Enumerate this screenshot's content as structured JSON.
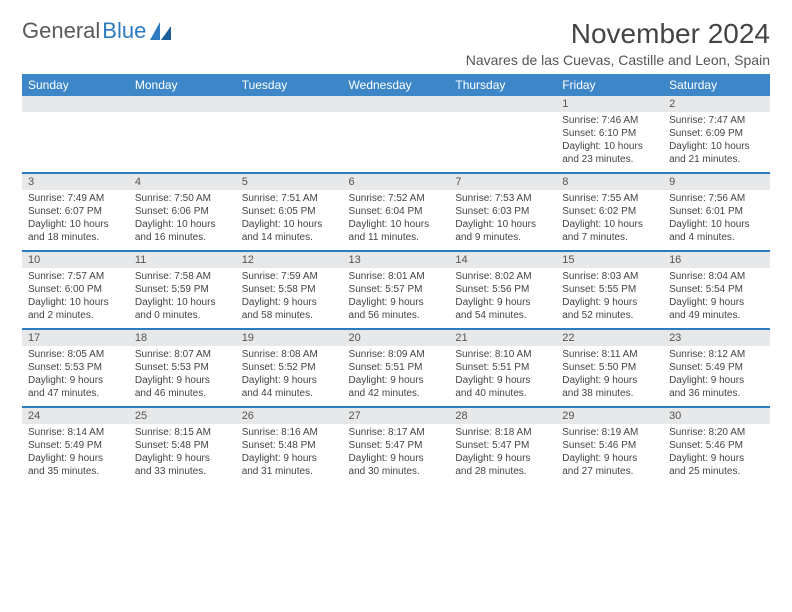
{
  "brand": {
    "word1": "General",
    "word2": "Blue"
  },
  "title": "November 2024",
  "location": "Navares de las Cuevas, Castille and Leon, Spain",
  "colors": {
    "header_bg": "#3d87c9",
    "header_text": "#ffffff",
    "week_rule": "#2f7bbf",
    "daynum_bg": "#e6e8ea",
    "body_text": "#444444",
    "brand_gray": "#5a5a5a",
    "brand_blue": "#2f7bbf"
  },
  "day_headers": [
    "Sunday",
    "Monday",
    "Tuesday",
    "Wednesday",
    "Thursday",
    "Friday",
    "Saturday"
  ],
  "weeks": [
    [
      null,
      null,
      null,
      null,
      null,
      {
        "n": "1",
        "sunrise": "Sunrise: 7:46 AM",
        "sunset": "Sunset: 6:10 PM",
        "day1": "Daylight: 10 hours",
        "day2": "and 23 minutes."
      },
      {
        "n": "2",
        "sunrise": "Sunrise: 7:47 AM",
        "sunset": "Sunset: 6:09 PM",
        "day1": "Daylight: 10 hours",
        "day2": "and 21 minutes."
      }
    ],
    [
      {
        "n": "3",
        "sunrise": "Sunrise: 7:49 AM",
        "sunset": "Sunset: 6:07 PM",
        "day1": "Daylight: 10 hours",
        "day2": "and 18 minutes."
      },
      {
        "n": "4",
        "sunrise": "Sunrise: 7:50 AM",
        "sunset": "Sunset: 6:06 PM",
        "day1": "Daylight: 10 hours",
        "day2": "and 16 minutes."
      },
      {
        "n": "5",
        "sunrise": "Sunrise: 7:51 AM",
        "sunset": "Sunset: 6:05 PM",
        "day1": "Daylight: 10 hours",
        "day2": "and 14 minutes."
      },
      {
        "n": "6",
        "sunrise": "Sunrise: 7:52 AM",
        "sunset": "Sunset: 6:04 PM",
        "day1": "Daylight: 10 hours",
        "day2": "and 11 minutes."
      },
      {
        "n": "7",
        "sunrise": "Sunrise: 7:53 AM",
        "sunset": "Sunset: 6:03 PM",
        "day1": "Daylight: 10 hours",
        "day2": "and 9 minutes."
      },
      {
        "n": "8",
        "sunrise": "Sunrise: 7:55 AM",
        "sunset": "Sunset: 6:02 PM",
        "day1": "Daylight: 10 hours",
        "day2": "and 7 minutes."
      },
      {
        "n": "9",
        "sunrise": "Sunrise: 7:56 AM",
        "sunset": "Sunset: 6:01 PM",
        "day1": "Daylight: 10 hours",
        "day2": "and 4 minutes."
      }
    ],
    [
      {
        "n": "10",
        "sunrise": "Sunrise: 7:57 AM",
        "sunset": "Sunset: 6:00 PM",
        "day1": "Daylight: 10 hours",
        "day2": "and 2 minutes."
      },
      {
        "n": "11",
        "sunrise": "Sunrise: 7:58 AM",
        "sunset": "Sunset: 5:59 PM",
        "day1": "Daylight: 10 hours",
        "day2": "and 0 minutes."
      },
      {
        "n": "12",
        "sunrise": "Sunrise: 7:59 AM",
        "sunset": "Sunset: 5:58 PM",
        "day1": "Daylight: 9 hours",
        "day2": "and 58 minutes."
      },
      {
        "n": "13",
        "sunrise": "Sunrise: 8:01 AM",
        "sunset": "Sunset: 5:57 PM",
        "day1": "Daylight: 9 hours",
        "day2": "and 56 minutes."
      },
      {
        "n": "14",
        "sunrise": "Sunrise: 8:02 AM",
        "sunset": "Sunset: 5:56 PM",
        "day1": "Daylight: 9 hours",
        "day2": "and 54 minutes."
      },
      {
        "n": "15",
        "sunrise": "Sunrise: 8:03 AM",
        "sunset": "Sunset: 5:55 PM",
        "day1": "Daylight: 9 hours",
        "day2": "and 52 minutes."
      },
      {
        "n": "16",
        "sunrise": "Sunrise: 8:04 AM",
        "sunset": "Sunset: 5:54 PM",
        "day1": "Daylight: 9 hours",
        "day2": "and 49 minutes."
      }
    ],
    [
      {
        "n": "17",
        "sunrise": "Sunrise: 8:05 AM",
        "sunset": "Sunset: 5:53 PM",
        "day1": "Daylight: 9 hours",
        "day2": "and 47 minutes."
      },
      {
        "n": "18",
        "sunrise": "Sunrise: 8:07 AM",
        "sunset": "Sunset: 5:53 PM",
        "day1": "Daylight: 9 hours",
        "day2": "and 46 minutes."
      },
      {
        "n": "19",
        "sunrise": "Sunrise: 8:08 AM",
        "sunset": "Sunset: 5:52 PM",
        "day1": "Daylight: 9 hours",
        "day2": "and 44 minutes."
      },
      {
        "n": "20",
        "sunrise": "Sunrise: 8:09 AM",
        "sunset": "Sunset: 5:51 PM",
        "day1": "Daylight: 9 hours",
        "day2": "and 42 minutes."
      },
      {
        "n": "21",
        "sunrise": "Sunrise: 8:10 AM",
        "sunset": "Sunset: 5:51 PM",
        "day1": "Daylight: 9 hours",
        "day2": "and 40 minutes."
      },
      {
        "n": "22",
        "sunrise": "Sunrise: 8:11 AM",
        "sunset": "Sunset: 5:50 PM",
        "day1": "Daylight: 9 hours",
        "day2": "and 38 minutes."
      },
      {
        "n": "23",
        "sunrise": "Sunrise: 8:12 AM",
        "sunset": "Sunset: 5:49 PM",
        "day1": "Daylight: 9 hours",
        "day2": "and 36 minutes."
      }
    ],
    [
      {
        "n": "24",
        "sunrise": "Sunrise: 8:14 AM",
        "sunset": "Sunset: 5:49 PM",
        "day1": "Daylight: 9 hours",
        "day2": "and 35 minutes."
      },
      {
        "n": "25",
        "sunrise": "Sunrise: 8:15 AM",
        "sunset": "Sunset: 5:48 PM",
        "day1": "Daylight: 9 hours",
        "day2": "and 33 minutes."
      },
      {
        "n": "26",
        "sunrise": "Sunrise: 8:16 AM",
        "sunset": "Sunset: 5:48 PM",
        "day1": "Daylight: 9 hours",
        "day2": "and 31 minutes."
      },
      {
        "n": "27",
        "sunrise": "Sunrise: 8:17 AM",
        "sunset": "Sunset: 5:47 PM",
        "day1": "Daylight: 9 hours",
        "day2": "and 30 minutes."
      },
      {
        "n": "28",
        "sunrise": "Sunrise: 8:18 AM",
        "sunset": "Sunset: 5:47 PM",
        "day1": "Daylight: 9 hours",
        "day2": "and 28 minutes."
      },
      {
        "n": "29",
        "sunrise": "Sunrise: 8:19 AM",
        "sunset": "Sunset: 5:46 PM",
        "day1": "Daylight: 9 hours",
        "day2": "and 27 minutes."
      },
      {
        "n": "30",
        "sunrise": "Sunrise: 8:20 AM",
        "sunset": "Sunset: 5:46 PM",
        "day1": "Daylight: 9 hours",
        "day2": "and 25 minutes."
      }
    ]
  ]
}
